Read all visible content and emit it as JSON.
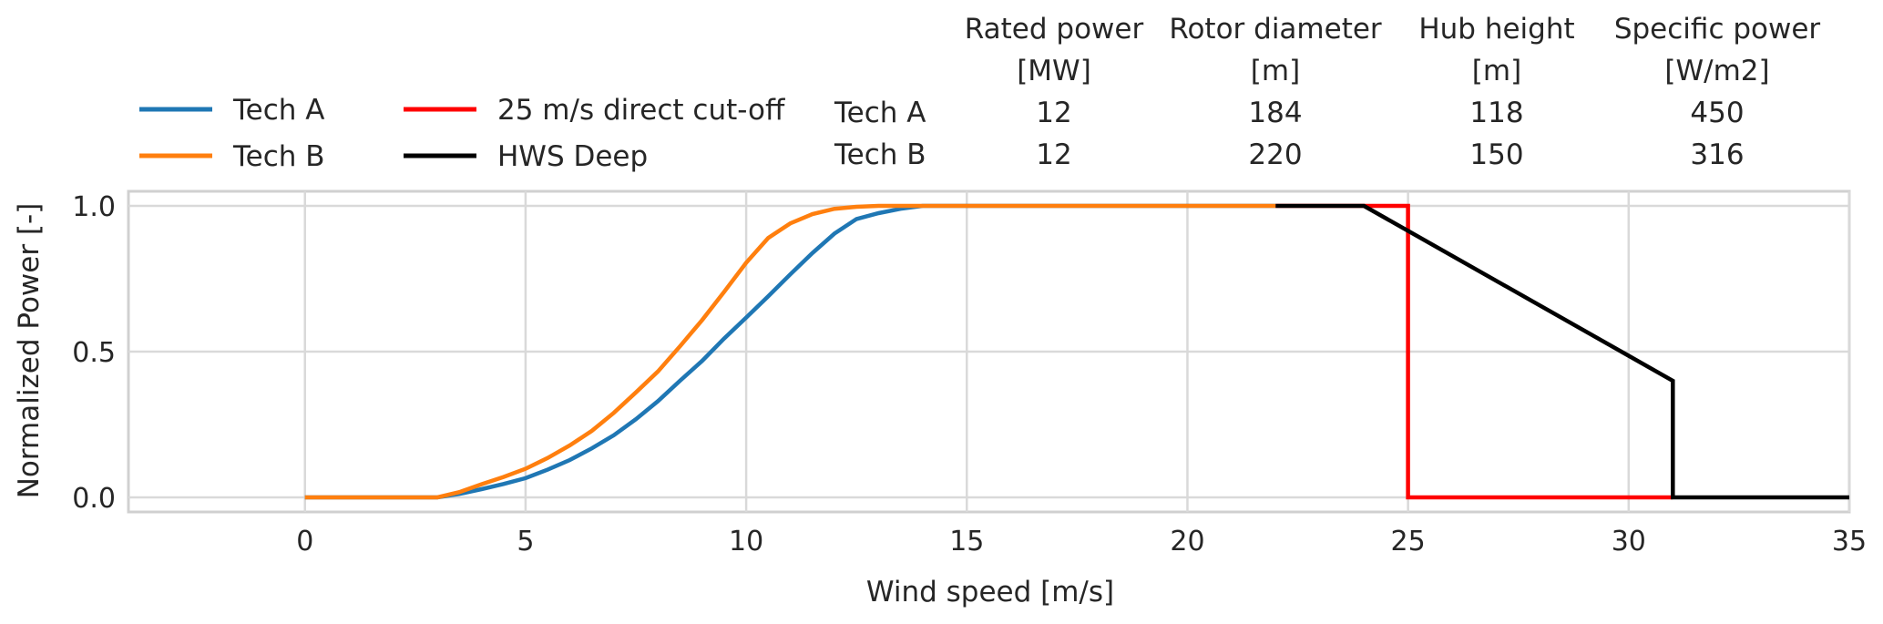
{
  "chart_data": {
    "type": "line",
    "title": "",
    "xlabel": "Wind speed [m/s]",
    "ylabel": "Normalized Power [-]",
    "xlim": [
      -4,
      35
    ],
    "ylim": [
      -0.05,
      1.05
    ],
    "xticks": [
      0,
      5,
      10,
      15,
      20,
      25,
      30,
      35
    ],
    "yticks": [
      0.0,
      0.5,
      1.0
    ],
    "xtick_labels": [
      "0",
      "5",
      "10",
      "15",
      "20",
      "25",
      "30",
      "35"
    ],
    "ytick_labels": [
      "0.0",
      "0.5",
      "1.0"
    ],
    "grid": true,
    "legend_position": "top-left",
    "series": [
      {
        "name": "Tech A",
        "color": "#1f77b4",
        "x": [
          0,
          3,
          3.5,
          4,
          4.5,
          5,
          5.5,
          6,
          6.5,
          7,
          7.5,
          8,
          8.5,
          9,
          9.5,
          10,
          10.5,
          11,
          11.5,
          12,
          12.5,
          13,
          13.5,
          14,
          22
        ],
        "y": [
          0,
          0,
          0.012,
          0.028,
          0.046,
          0.066,
          0.095,
          0.128,
          0.168,
          0.213,
          0.268,
          0.33,
          0.4,
          0.468,
          0.545,
          0.617,
          0.69,
          0.765,
          0.838,
          0.905,
          0.955,
          0.975,
          0.99,
          1.0,
          1.0
        ]
      },
      {
        "name": "Tech B",
        "color": "#ff7f0e",
        "x": [
          0,
          3,
          3.5,
          4,
          4.5,
          5,
          5.5,
          6,
          6.5,
          7,
          7.5,
          8,
          8.5,
          9,
          9.5,
          10,
          10.5,
          11,
          11.5,
          12,
          12.5,
          13,
          14,
          22
        ],
        "y": [
          0,
          0,
          0.018,
          0.045,
          0.07,
          0.098,
          0.135,
          0.178,
          0.228,
          0.29,
          0.36,
          0.432,
          0.518,
          0.608,
          0.705,
          0.805,
          0.89,
          0.94,
          0.972,
          0.99,
          0.997,
          1.0,
          1.0,
          1.0
        ]
      },
      {
        "name": "25 m/s direct cut-off",
        "color": "#ff0000",
        "x": [
          22,
          25,
          25,
          31
        ],
        "y": [
          1.0,
          1.0,
          0.0,
          0.0
        ]
      },
      {
        "name": "HWS Deep",
        "color": "#000000",
        "x": [
          22,
          24,
          31,
          31,
          35
        ],
        "y": [
          1.0,
          1.0,
          0.4,
          0.0,
          0.0
        ]
      }
    ],
    "table": {
      "columns": [
        {
          "header": "Rated power",
          "unit": "[MW]"
        },
        {
          "header": "Rotor diameter",
          "unit": "[m]"
        },
        {
          "header": "Hub height",
          "unit": "[m]"
        },
        {
          "header": "Specific power",
          "unit": "[W/m2]"
        }
      ],
      "rows": [
        {
          "label": "Tech A",
          "values": [
            "12",
            "184",
            "118",
            "450"
          ]
        },
        {
          "label": "Tech B",
          "values": [
            "12",
            "220",
            "150",
            "316"
          ]
        }
      ]
    }
  }
}
